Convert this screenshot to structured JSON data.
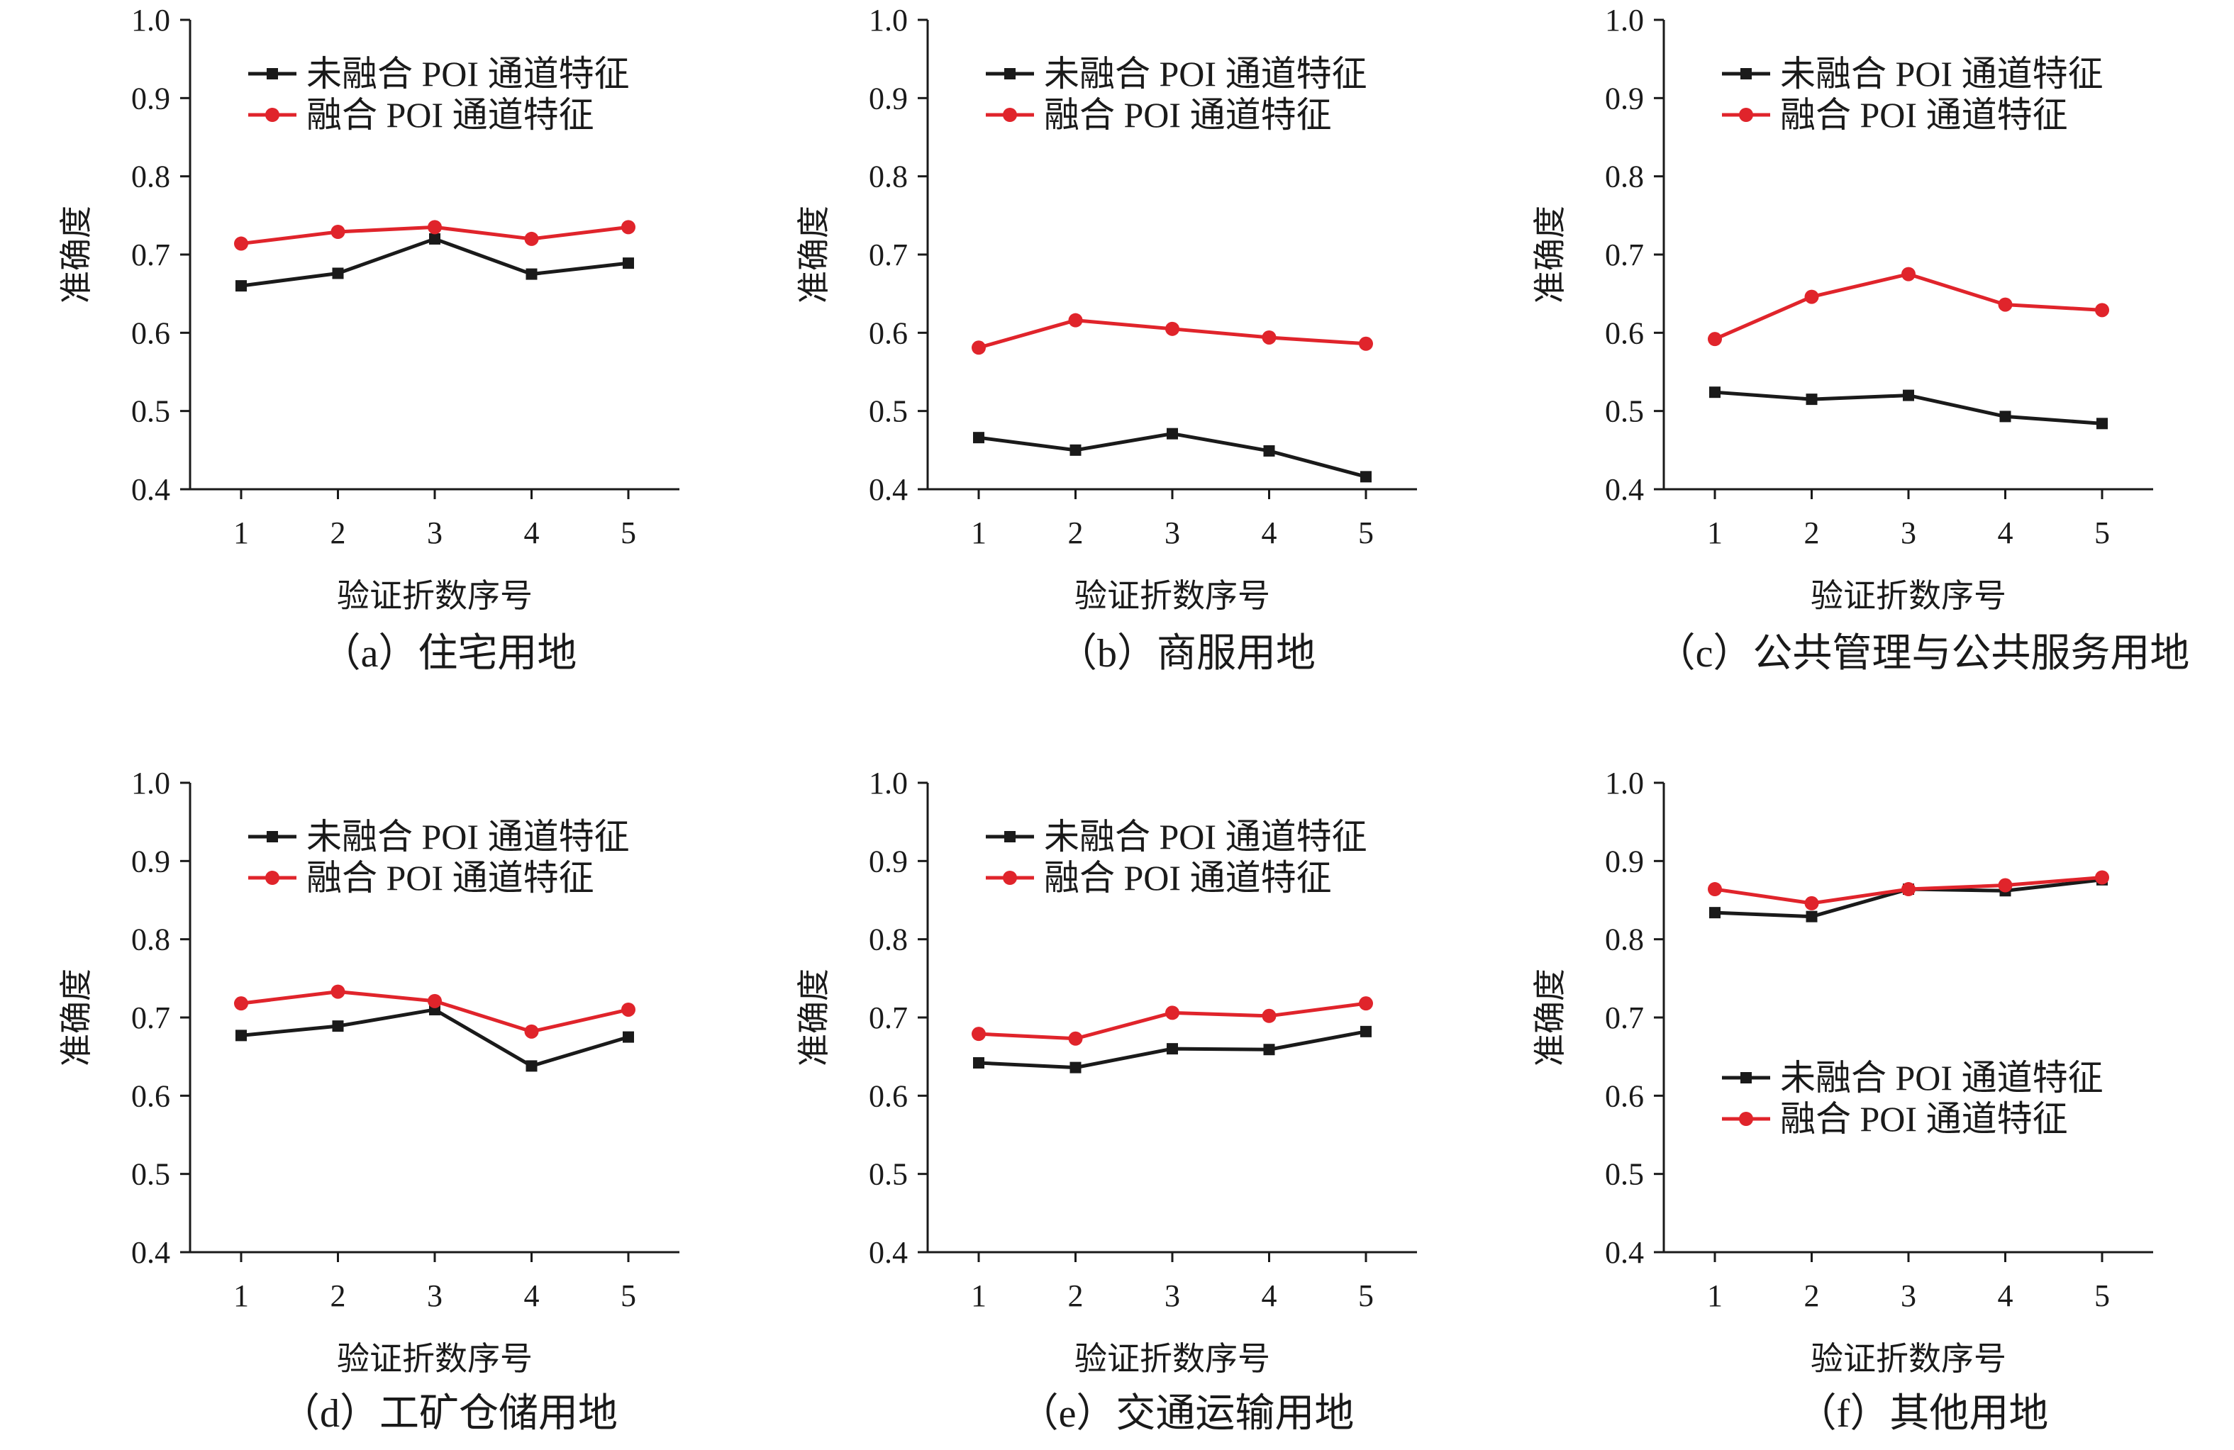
{
  "figure": {
    "charts": [
      {
        "type": "line",
        "caption": "（a）住宅用地",
        "xlabel": "验证折数序号",
        "ylabel": "准确度",
        "categories": [
          "1",
          "2",
          "3",
          "4",
          "5"
        ],
        "yticks": [
          "0.4",
          "0.5",
          "0.6",
          "0.7",
          "0.8",
          "0.9",
          "1.0"
        ],
        "ylim": [
          0.4,
          1.0
        ],
        "grid": false,
        "legend_position": "top-left",
        "series": [
          {
            "name": "未融合 POI 通道特征",
            "marker": "square",
            "color": "#1a1a1a",
            "values": [
              0.66,
              0.676,
              0.72,
              0.675,
              0.689
            ]
          },
          {
            "name": "融合 POI 通道特征",
            "marker": "circle",
            "color": "#e0242b",
            "values": [
              0.714,
              0.729,
              0.735,
              0.72,
              0.735
            ]
          }
        ]
      },
      {
        "type": "line",
        "caption": "（b）商服用地",
        "xlabel": "验证折数序号",
        "ylabel": "准确度",
        "categories": [
          "1",
          "2",
          "3",
          "4",
          "5"
        ],
        "yticks": [
          "0.4",
          "0.5",
          "0.6",
          "0.7",
          "0.8",
          "0.9",
          "1.0"
        ],
        "ylim": [
          0.4,
          1.0
        ],
        "grid": false,
        "legend_position": "top-left",
        "series": [
          {
            "name": "未融合 POI 通道特征",
            "marker": "square",
            "color": "#1a1a1a",
            "values": [
              0.466,
              0.45,
              0.471,
              0.449,
              0.416
            ]
          },
          {
            "name": "融合 POI 通道特征",
            "marker": "circle",
            "color": "#e0242b",
            "values": [
              0.581,
              0.616,
              0.605,
              0.594,
              0.586
            ]
          }
        ]
      },
      {
        "type": "line",
        "caption": "（c）公共管理与公共服务用地",
        "xlabel": "验证折数序号",
        "ylabel": "准确度",
        "categories": [
          "1",
          "2",
          "3",
          "4",
          "5"
        ],
        "yticks": [
          "0.4",
          "0.5",
          "0.6",
          "0.7",
          "0.8",
          "0.9",
          "1.0"
        ],
        "ylim": [
          0.4,
          1.0
        ],
        "grid": false,
        "legend_position": "top-left",
        "series": [
          {
            "name": "未融合 POI 通道特征",
            "marker": "square",
            "color": "#1a1a1a",
            "values": [
              0.524,
              0.515,
              0.52,
              0.493,
              0.484
            ]
          },
          {
            "name": "融合 POI 通道特征",
            "marker": "circle",
            "color": "#e0242b",
            "values": [
              0.592,
              0.646,
              0.675,
              0.636,
              0.629
            ]
          }
        ]
      },
      {
        "type": "line",
        "caption": "（d）工矿仓储用地",
        "xlabel": "验证折数序号",
        "ylabel": "准确度",
        "categories": [
          "1",
          "2",
          "3",
          "4",
          "5"
        ],
        "yticks": [
          "0.4",
          "0.5",
          "0.6",
          "0.7",
          "0.8",
          "0.9",
          "1.0"
        ],
        "ylim": [
          0.4,
          1.0
        ],
        "grid": false,
        "legend_position": "top-left",
        "series": [
          {
            "name": "未融合 POI 通道特征",
            "marker": "square",
            "color": "#1a1a1a",
            "values": [
              0.677,
              0.689,
              0.71,
              0.638,
              0.675
            ]
          },
          {
            "name": "融合 POI 通道特征",
            "marker": "circle",
            "color": "#e0242b",
            "values": [
              0.718,
              0.733,
              0.721,
              0.682,
              0.71
            ]
          }
        ]
      },
      {
        "type": "line",
        "caption": "（e）交通运输用地",
        "xlabel": "验证折数序号",
        "ylabel": "准确度",
        "categories": [
          "1",
          "2",
          "3",
          "4",
          "5"
        ],
        "yticks": [
          "0.4",
          "0.5",
          "0.6",
          "0.7",
          "0.8",
          "0.9",
          "1.0"
        ],
        "ylim": [
          0.4,
          1.0
        ],
        "grid": false,
        "legend_position": "top-left",
        "series": [
          {
            "name": "未融合 POI 通道特征",
            "marker": "square",
            "color": "#1a1a1a",
            "values": [
              0.642,
              0.636,
              0.66,
              0.659,
              0.682
            ]
          },
          {
            "name": "融合 POI 通道特征",
            "marker": "circle",
            "color": "#e0242b",
            "values": [
              0.679,
              0.673,
              0.706,
              0.702,
              0.718
            ]
          }
        ]
      },
      {
        "type": "line",
        "caption": "（f）其他用地",
        "xlabel": "验证折数序号",
        "ylabel": "准确度",
        "categories": [
          "1",
          "2",
          "3",
          "4",
          "5"
        ],
        "yticks": [
          "0.4",
          "0.5",
          "0.6",
          "0.7",
          "0.8",
          "0.9",
          "1.0"
        ],
        "ylim": [
          0.4,
          1.0
        ],
        "grid": false,
        "legend_position": "center-left",
        "series": [
          {
            "name": "未融合 POI 通道特征",
            "marker": "square",
            "color": "#1a1a1a",
            "values": [
              0.834,
              0.829,
              0.864,
              0.862,
              0.876
            ]
          },
          {
            "name": "融合 POI 通道特征",
            "marker": "circle",
            "color": "#e0242b",
            "values": [
              0.864,
              0.846,
              0.864,
              0.869,
              0.879
            ]
          }
        ]
      }
    ]
  }
}
